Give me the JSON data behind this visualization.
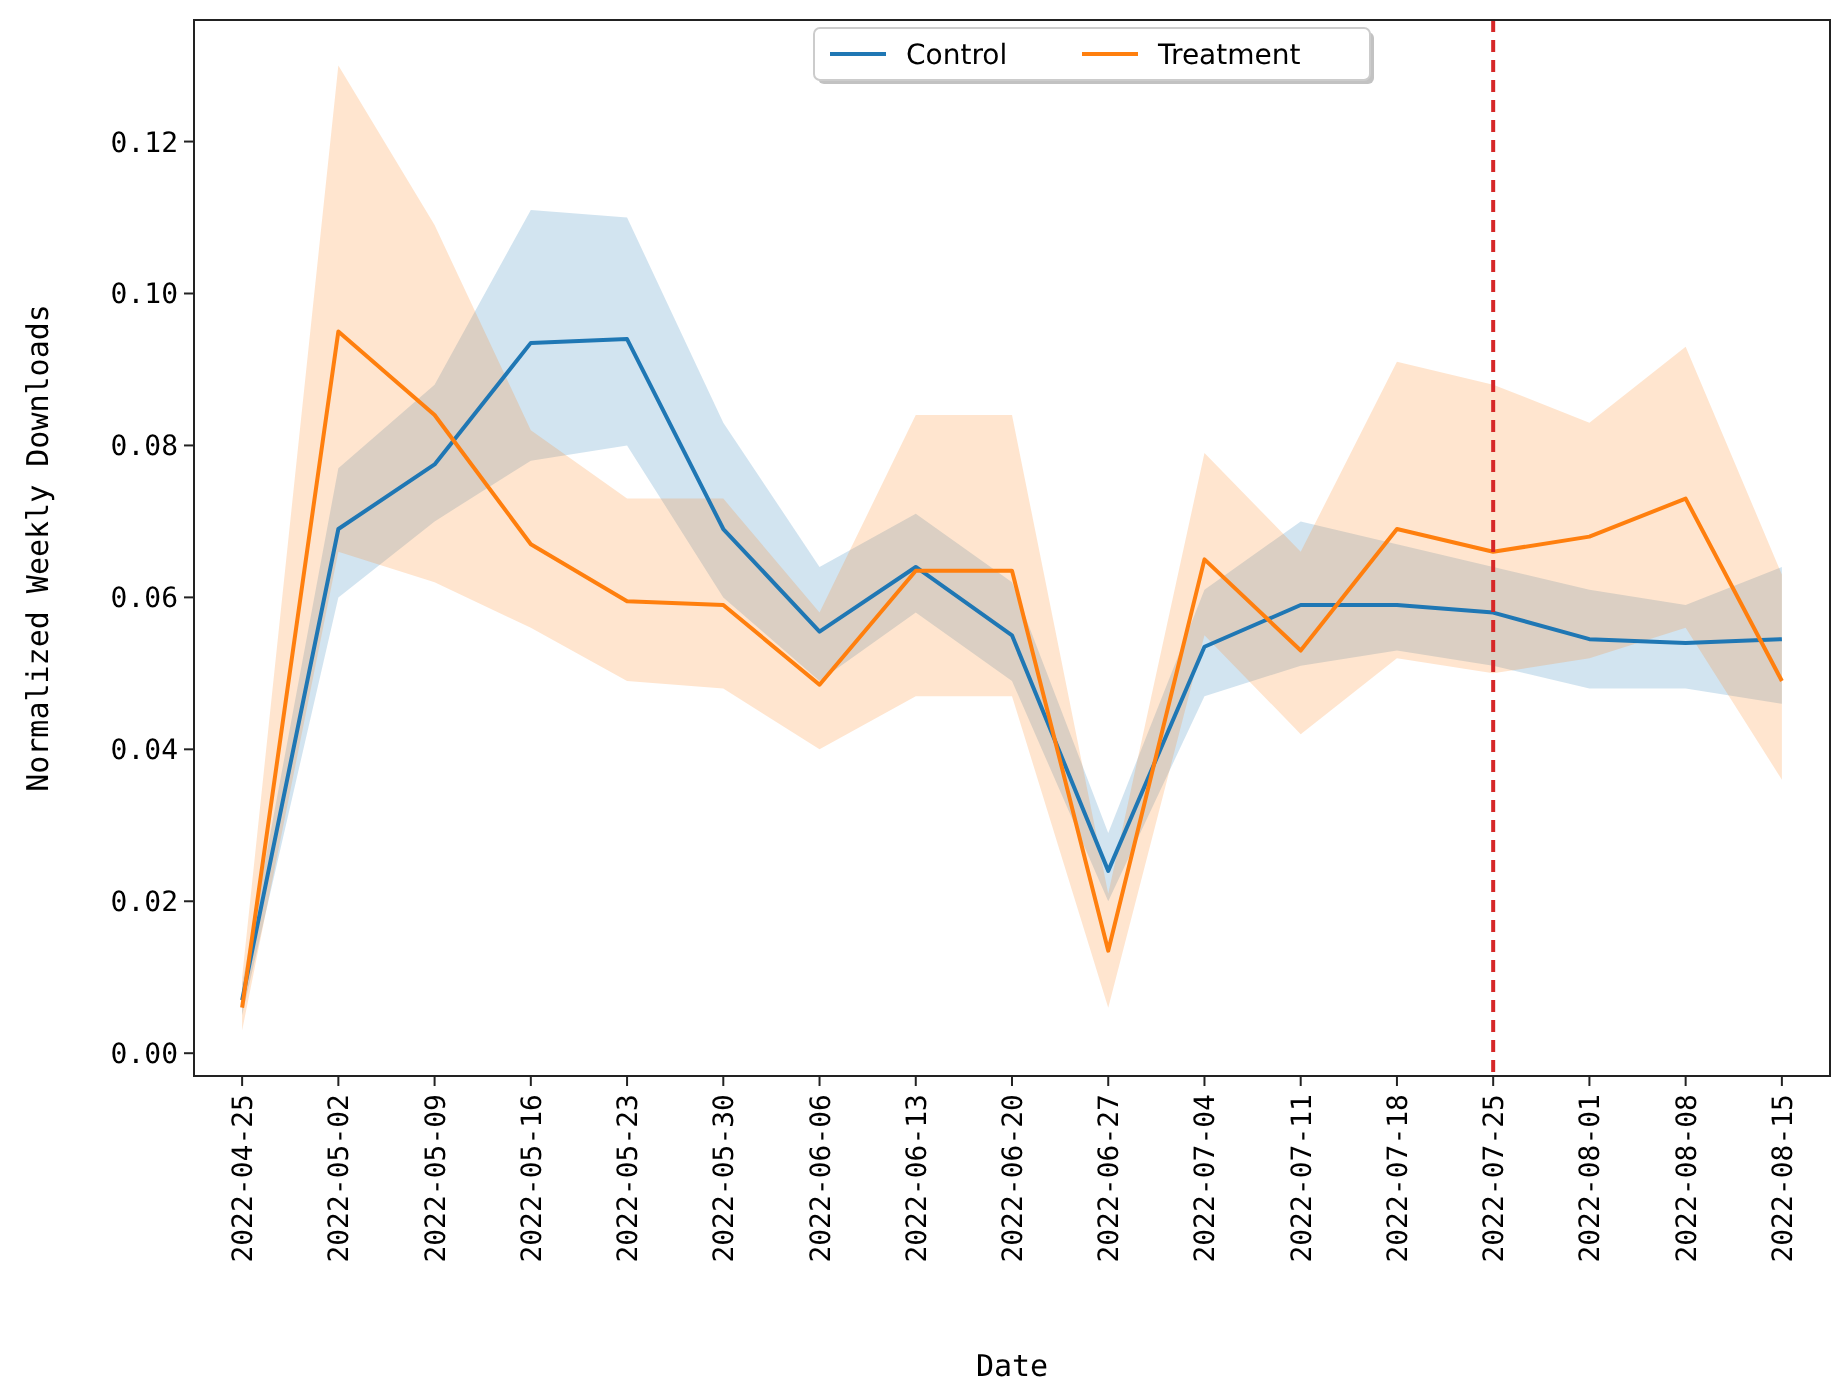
{
  "chart_data": {
    "type": "line",
    "xlabel": "Date",
    "ylabel": "Normalized Weekly Downloads",
    "categories": [
      "2022-04-25",
      "2022-05-02",
      "2022-05-09",
      "2022-05-16",
      "2022-05-23",
      "2022-05-30",
      "2022-06-06",
      "2022-06-13",
      "2022-06-20",
      "2022-06-27",
      "2022-07-04",
      "2022-07-11",
      "2022-07-18",
      "2022-07-25",
      "2022-08-01",
      "2022-08-08",
      "2022-08-15"
    ],
    "series": [
      {
        "name": "Control",
        "color": "#1f77b4",
        "values": [
          0.007,
          0.069,
          0.0775,
          0.0935,
          0.094,
          0.069,
          0.0555,
          0.064,
          0.055,
          0.024,
          0.0535,
          0.059,
          0.059,
          0.058,
          0.0545,
          0.054,
          0.0545
        ],
        "lower": [
          0.005,
          0.06,
          0.07,
          0.078,
          0.08,
          0.06,
          0.049,
          0.058,
          0.049,
          0.02,
          0.047,
          0.051,
          0.053,
          0.051,
          0.048,
          0.048,
          0.046
        ],
        "upper": [
          0.009,
          0.077,
          0.088,
          0.111,
          0.11,
          0.083,
          0.064,
          0.071,
          0.062,
          0.029,
          0.061,
          0.07,
          0.067,
          0.064,
          0.061,
          0.059,
          0.064
        ]
      },
      {
        "name": "Treatment",
        "color": "#ff7f0e",
        "values": [
          0.006,
          0.095,
          0.084,
          0.067,
          0.0595,
          0.059,
          0.0485,
          0.0635,
          0.0635,
          0.0135,
          0.065,
          0.053,
          0.069,
          0.066,
          0.068,
          0.073,
          0.049
        ],
        "lower": [
          0.003,
          0.066,
          0.062,
          0.056,
          0.049,
          0.048,
          0.04,
          0.047,
          0.047,
          0.006,
          0.055,
          0.042,
          0.052,
          0.05,
          0.052,
          0.056,
          0.036
        ],
        "upper": [
          0.01,
          0.13,
          0.109,
          0.082,
          0.073,
          0.073,
          0.058,
          0.084,
          0.084,
          0.021,
          0.079,
          0.066,
          0.091,
          0.088,
          0.083,
          0.093,
          0.063
        ]
      }
    ],
    "ylim": [
      -0.003,
      0.136
    ],
    "yticks": [
      {
        "value": 0,
        "label": "0.00"
      },
      {
        "value": 0.02,
        "label": "0.02"
      },
      {
        "value": 0.04,
        "label": "0.04"
      },
      {
        "value": 0.06,
        "label": "0.06"
      },
      {
        "value": 0.08,
        "label": "0.08"
      },
      {
        "value": 0.1,
        "label": "0.10"
      },
      {
        "value": 0.12,
        "label": "0.12"
      }
    ],
    "ref_lines": [
      {
        "axis": "x",
        "value": "2022-07-25",
        "color": "#d62728",
        "line_style": "dashed"
      }
    ],
    "legend": "top",
    "grid": false,
    "marker": "none",
    "line_style": "solid"
  }
}
